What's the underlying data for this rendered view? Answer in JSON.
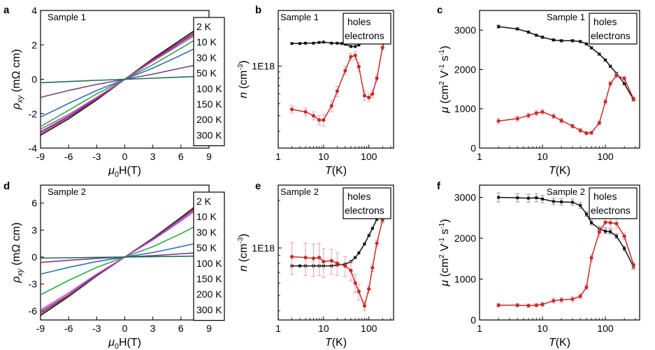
{
  "colors": {
    "holes": "#111111",
    "electrons": "#cc2a2a",
    "electrons_err": "#e6a3a3",
    "holes_err": "#9a9a9a",
    "temps": [
      "#111111",
      "#d62a2a",
      "#3c4fa3",
      "#d33cd0",
      "#2ea845",
      "#2f6fb3",
      "#7a3b8e",
      "#1f6f4e"
    ]
  },
  "chart_data": [
    {
      "id": "a",
      "panel": "a",
      "type": "line",
      "sample": "Sample 1",
      "xlabel": {
        "sym": "μ",
        "sub": "0",
        "rest": "H(T)"
      },
      "ylabel": {
        "sym": "ρ",
        "sub": "xy",
        "unit": "(mΩ cm)"
      },
      "xlim": [
        -9,
        9
      ],
      "ylim": [
        -4,
        4
      ],
      "xticks": [
        -9,
        -6,
        -3,
        0,
        3,
        6,
        9
      ],
      "yticks": [
        -4,
        -2,
        0,
        2,
        4
      ],
      "legend": {
        "position": "right",
        "entries": [
          "2 K",
          "10 K",
          "30 K",
          "50 K",
          "100 K",
          "150 K",
          "200 K",
          "300 K"
        ]
      },
      "series": [
        {
          "name": "2 K",
          "x": [
            -9,
            -6,
            -3,
            0,
            3,
            6,
            7.5
          ],
          "y": [
            -3.25,
            -2.3,
            -1.2,
            0,
            1.2,
            2.3,
            2.85
          ]
        },
        {
          "name": "10 K",
          "x": [
            -9,
            -6,
            -3,
            0,
            3,
            6,
            7.5
          ],
          "y": [
            -3.15,
            -2.2,
            -1.15,
            0,
            1.15,
            2.2,
            2.75
          ]
        },
        {
          "name": "30 K",
          "x": [
            -9,
            -6,
            -3,
            0,
            3,
            6,
            7.5
          ],
          "y": [
            -3.05,
            -2.15,
            -1.1,
            0,
            1.1,
            2.15,
            2.65
          ]
        },
        {
          "name": "50 K",
          "x": [
            -9,
            -6,
            -3,
            0,
            3,
            6,
            7.5
          ],
          "y": [
            -2.9,
            -2.05,
            -1.05,
            0,
            1.05,
            2.05,
            2.55
          ]
        },
        {
          "name": "100 K",
          "x": [
            -9,
            -6,
            -3,
            0,
            3,
            6,
            7.5
          ],
          "y": [
            -2.75,
            -1.8,
            -0.85,
            0,
            0.85,
            1.8,
            2.3
          ]
        },
        {
          "name": "150 K",
          "x": [
            -9,
            -6,
            -3,
            0,
            3,
            6,
            7.5
          ],
          "y": [
            -2.2,
            -1.4,
            -0.65,
            0,
            0.65,
            1.4,
            1.8
          ]
        },
        {
          "name": "200 K",
          "x": [
            -9,
            -6,
            -3,
            0,
            3,
            6,
            7.5
          ],
          "y": [
            -1.05,
            -0.65,
            -0.3,
            0,
            0.3,
            0.65,
            0.82
          ]
        },
        {
          "name": "300 K",
          "x": [
            -9,
            -6,
            -3,
            0,
            3,
            6,
            7.5
          ],
          "y": [
            -0.2,
            -0.13,
            -0.06,
            0,
            0.06,
            0.13,
            0.16
          ]
        }
      ]
    },
    {
      "id": "b",
      "panel": "b",
      "type": "line",
      "sample": "Sample 1",
      "xlabel": {
        "sym": "T",
        "rest": "(K)"
      },
      "ylabel": {
        "sym": "n",
        "unit": "(cm",
        "sup": "-3",
        "close": ")"
      },
      "xscale": "log",
      "yscale": "log",
      "xlim": [
        1,
        350
      ],
      "ylim": [
        0.22,
        2.8
      ],
      "xticks": [
        1,
        10,
        100
      ],
      "yticks": [
        1
      ],
      "ytick_labels": [
        "1E18"
      ],
      "legend": {
        "position": "top-right",
        "entries": [
          "holes",
          "electrons"
        ]
      },
      "series": [
        {
          "name": "holes",
          "x": [
            2,
            3,
            4,
            6,
            8,
            10,
            15,
            20,
            25,
            30,
            40,
            50,
            60,
            80,
            100,
            120,
            150,
            200,
            280
          ],
          "y": [
            1.52,
            1.52,
            1.53,
            1.53,
            1.55,
            1.56,
            1.53,
            1.53,
            1.52,
            1.5,
            1.44,
            1.44,
            1.48,
            1.57,
            1.7,
            1.85,
            2.02,
            2.25,
            2.45
          ]
        },
        {
          "name": "electrons",
          "x": [
            2,
            4,
            6,
            8,
            10,
            15,
            20,
            30,
            40,
            50,
            60,
            80,
            100,
            120,
            150,
            200,
            280
          ],
          "y": [
            0.45,
            0.43,
            0.4,
            0.37,
            0.37,
            0.48,
            0.63,
            0.92,
            1.19,
            1.22,
            0.99,
            0.58,
            0.56,
            0.6,
            0.8,
            1.41,
            2.07
          ],
          "err": [
            0.03,
            0.03,
            0.03,
            0.03,
            0.04,
            0.05,
            0.06,
            0.07,
            0.08,
            0.09,
            0.08,
            0.05,
            0.04,
            0.04,
            0.05,
            0.06,
            0.06
          ]
        }
      ]
    },
    {
      "id": "c",
      "panel": "c",
      "type": "line",
      "sample": "Sample 1",
      "xlabel": {
        "sym": "T",
        "rest": "(K)"
      },
      "ylabel": {
        "sym": "μ",
        "unit": "(cm",
        "sup": "2",
        "mid": " V",
        "sup2": "-1",
        "mid2": " s",
        "sup3": "-1",
        "close": ")"
      },
      "xscale": "log",
      "xlim": [
        1,
        350
      ],
      "ylim": [
        0,
        3500
      ],
      "xticks": [
        1,
        10,
        100
      ],
      "yticks": [
        0,
        1000,
        2000,
        3000
      ],
      "legend": {
        "position": "top-right",
        "entries": [
          "holes",
          "electrons"
        ]
      },
      "series": [
        {
          "name": "holes",
          "x": [
            2,
            4,
            6,
            8,
            10,
            15,
            20,
            30,
            40,
            50,
            60,
            80,
            100,
            120,
            150,
            200,
            280
          ],
          "y": [
            3090,
            3030,
            2950,
            2870,
            2820,
            2750,
            2730,
            2730,
            2710,
            2650,
            2550,
            2390,
            2240,
            2080,
            1900,
            1640,
            1230
          ],
          "err": [
            40,
            30,
            30,
            30,
            30,
            30,
            30,
            30,
            30,
            30,
            30,
            30,
            30,
            30,
            30,
            30,
            30
          ]
        },
        {
          "name": "electrons",
          "x": [
            2,
            4,
            6,
            8,
            10,
            15,
            20,
            30,
            40,
            50,
            60,
            80,
            100,
            120,
            150,
            200,
            280
          ],
          "y": [
            690,
            750,
            830,
            890,
            920,
            810,
            700,
            560,
            450,
            380,
            390,
            640,
            1180,
            1640,
            1850,
            1770,
            1250
          ],
          "err": [
            70,
            60,
            60,
            60,
            60,
            60,
            60,
            50,
            50,
            40,
            40,
            50,
            60,
            60,
            60,
            60,
            60
          ]
        }
      ]
    },
    {
      "id": "d",
      "panel": "d",
      "type": "line",
      "sample": "Sample 2",
      "xlabel": {
        "sym": "μ",
        "sub": "0",
        "rest": "H(T)"
      },
      "ylabel": {
        "sym": "ρ",
        "sub": "xy",
        "unit": "(mΩ cm)"
      },
      "xlim": [
        -9,
        9
      ],
      "ylim": [
        -7,
        8
      ],
      "xticks": [
        -9,
        -6,
        -3,
        0,
        3,
        6,
        9
      ],
      "yticks": [
        -6,
        -3,
        0,
        3,
        6
      ],
      "legend": {
        "position": "right",
        "entries": [
          "2 K",
          "10 K",
          "30 K",
          "50 K",
          "100 K",
          "150 K",
          "200 K",
          "300 K"
        ]
      },
      "series": [
        {
          "name": "2 K",
          "x": [
            -9,
            -6,
            -3,
            0,
            3,
            6,
            7.5
          ],
          "y": [
            -6.5,
            -4.4,
            -2.1,
            0,
            2.1,
            4.4,
            5.6
          ]
        },
        {
          "name": "10 K",
          "x": [
            -9,
            -6,
            -3,
            0,
            3,
            6,
            7.5
          ],
          "y": [
            -6.3,
            -4.3,
            -2.05,
            0,
            2.05,
            4.3,
            5.5
          ]
        },
        {
          "name": "30 K",
          "x": [
            -9,
            -6,
            -3,
            0,
            3,
            6,
            7.5
          ],
          "y": [
            -6.1,
            -4.2,
            -2.0,
            0,
            2.0,
            4.2,
            5.35
          ]
        },
        {
          "name": "50 K",
          "x": [
            -9,
            -6,
            -3,
            0,
            3,
            6,
            7.5
          ],
          "y": [
            -5.9,
            -4.0,
            -1.9,
            0,
            1.9,
            4.0,
            5.15
          ]
        },
        {
          "name": "100 K",
          "x": [
            -9,
            -6,
            -3,
            0,
            3,
            6,
            7.5
          ],
          "y": [
            -4.2,
            -2.6,
            -1.15,
            0,
            1.15,
            2.6,
            3.4
          ]
        },
        {
          "name": "150 K",
          "x": [
            -9,
            -6,
            -3,
            0,
            3,
            6,
            7.5
          ],
          "y": [
            -1.9,
            -1.15,
            -0.5,
            0,
            0.5,
            1.15,
            1.5
          ]
        },
        {
          "name": "200 K",
          "x": [
            -9,
            -6,
            -3,
            0,
            3,
            6,
            7.5
          ],
          "y": [
            -0.6,
            -0.36,
            -0.16,
            0,
            0.16,
            0.36,
            0.47
          ]
        },
        {
          "name": "300 K",
          "x": [
            -9,
            -6,
            -3,
            0,
            3,
            6,
            7.5
          ],
          "y": [
            -0.12,
            -0.08,
            -0.04,
            0,
            0.04,
            0.08,
            0.1
          ]
        }
      ]
    },
    {
      "id": "e",
      "panel": "e",
      "type": "line",
      "sample": "Sample 2",
      "xlabel": {
        "sym": "T",
        "rest": "(K)"
      },
      "ylabel": {
        "sym": "n",
        "unit": "(cm",
        "sup": "-3",
        "close": ")"
      },
      "xscale": "log",
      "yscale": "log",
      "xlim": [
        1,
        350
      ],
      "ylim": [
        0.35,
        2.5
      ],
      "xticks": [
        1,
        10,
        100
      ],
      "yticks": [
        1
      ],
      "ytick_labels": [
        "1E18"
      ],
      "legend": {
        "position": "top-right",
        "entries": [
          "holes",
          "electrons"
        ]
      },
      "series": [
        {
          "name": "holes",
          "x": [
            2,
            3,
            4,
            6,
            8,
            10,
            15,
            20,
            30,
            40,
            50,
            60,
            80,
            100,
            120,
            150,
            200,
            280
          ],
          "y": [
            0.77,
            0.77,
            0.77,
            0.77,
            0.77,
            0.77,
            0.77,
            0.78,
            0.79,
            0.82,
            0.87,
            0.93,
            1.06,
            1.2,
            1.33,
            1.52,
            1.78,
            2.06
          ]
        },
        {
          "name": "electrons",
          "x": [
            2,
            4,
            6,
            8,
            10,
            15,
            20,
            30,
            40,
            50,
            60,
            80,
            100,
            120,
            150,
            200,
            280
          ],
          "y": [
            0.88,
            0.87,
            0.86,
            0.87,
            0.82,
            0.83,
            0.8,
            0.77,
            0.72,
            0.6,
            0.53,
            0.43,
            0.55,
            0.75,
            1.07,
            1.5,
            1.9
          ],
          "err": [
            0.2,
            0.2,
            0.2,
            0.2,
            0.17,
            0.15,
            0.13,
            0.11,
            0.1,
            0.08,
            0.06,
            0.03,
            0.03,
            0.04,
            0.05,
            0.06,
            0.06
          ]
        }
      ]
    },
    {
      "id": "f",
      "panel": "f",
      "type": "line",
      "sample": "Sample 2",
      "xlabel": {
        "sym": "T",
        "rest": "(K)"
      },
      "ylabel": {
        "sym": "μ",
        "unit": "(cm",
        "sup": "2",
        "mid": " V",
        "sup2": "-1",
        "mid2": " s",
        "sup3": "-1",
        "close": ")"
      },
      "xscale": "log",
      "xlim": [
        1,
        350
      ],
      "ylim": [
        0,
        3300
      ],
      "xticks": [
        1,
        10,
        100
      ],
      "yticks": [
        0,
        1000,
        2000,
        3000
      ],
      "legend": {
        "position": "top-right",
        "entries": [
          "holes",
          "electrons"
        ]
      },
      "series": [
        {
          "name": "holes",
          "x": [
            2,
            4,
            6,
            8,
            10,
            15,
            20,
            30,
            40,
            50,
            60,
            80,
            100,
            120,
            150,
            200,
            280
          ],
          "y": [
            3000,
            2990,
            2980,
            2990,
            2960,
            2900,
            2890,
            2880,
            2800,
            2590,
            2380,
            2230,
            2170,
            2160,
            2050,
            1750,
            1300
          ],
          "err": [
            110,
            100,
            100,
            100,
            90,
            80,
            80,
            80,
            70,
            60,
            60,
            60,
            60,
            60,
            60,
            60,
            60
          ]
        },
        {
          "name": "electrons",
          "x": [
            2,
            4,
            6,
            8,
            10,
            15,
            20,
            30,
            40,
            50,
            60,
            80,
            100,
            120,
            150,
            200,
            280
          ],
          "y": [
            360,
            360,
            350,
            360,
            380,
            470,
            490,
            510,
            580,
            800,
            1520,
            2150,
            2390,
            2380,
            2360,
            2050,
            1350
          ],
          "err": [
            40,
            40,
            40,
            40,
            50,
            60,
            60,
            60,
            60,
            60,
            80,
            120,
            130,
            130,
            120,
            80,
            60
          ]
        }
      ]
    }
  ]
}
